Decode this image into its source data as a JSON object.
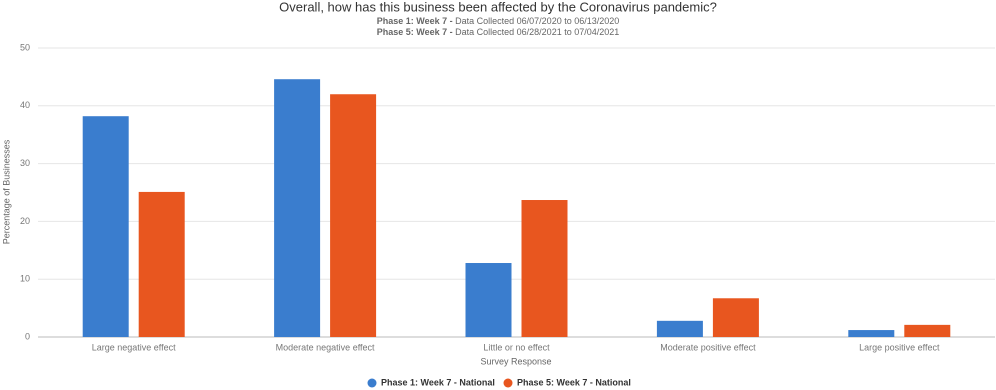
{
  "chart_data": {
    "type": "bar",
    "title": "Overall, how has this business been affected by the Coronavirus pandemic?",
    "subtitles": [
      {
        "label": "Phase 1: Week 7 -",
        "text": "Data Collected 06/07/2020 to 06/13/2020"
      },
      {
        "label": "Phase 5: Week 7 -",
        "text": "Data Collected 06/28/2021 to 07/04/2021"
      }
    ],
    "x_label": "Survey Response",
    "y_label": "Percentage of Businesses",
    "categories": [
      "Large negative effect",
      "Moderate negative effect",
      "Little or no effect",
      "Moderate positive effect",
      "Large positive effect"
    ],
    "series": [
      {
        "name": "Phase 1: Week 7 - National",
        "color": "#3a7dce",
        "values": [
          38.2,
          44.6,
          12.8,
          2.8,
          1.2
        ]
      },
      {
        "name": "Phase 5: Week 7 - National",
        "color": "#e8561f",
        "values": [
          25.1,
          42.0,
          23.7,
          6.7,
          2.1
        ]
      }
    ],
    "ylim": [
      0,
      50
    ],
    "yticks": [
      0,
      10,
      20,
      30,
      40,
      50
    ],
    "grid": true,
    "legend": "bottom"
  }
}
